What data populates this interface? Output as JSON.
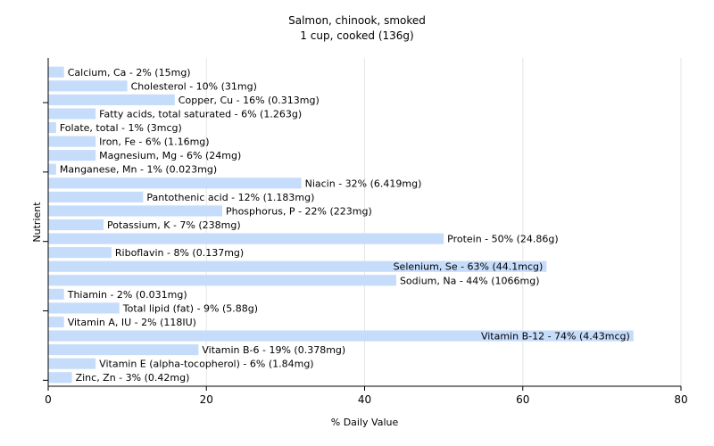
{
  "chart_data": {
    "type": "bar",
    "orientation": "horizontal",
    "title": "Salmon, chinook, smoked",
    "subtitle": "1 cup, cooked (136g)",
    "xlabel": "% Daily Value",
    "ylabel": "Nutrient",
    "xlim": [
      0,
      80
    ],
    "xticks": [
      "0",
      "20",
      "40",
      "60",
      "80"
    ],
    "grid": true,
    "bar_color": "#c6dcfb",
    "categories": [
      "Calcium, Ca",
      "Cholesterol",
      "Copper, Cu",
      "Fatty acids, total saturated",
      "Folate, total",
      "Iron, Fe",
      "Magnesium, Mg",
      "Manganese, Mn",
      "Niacin",
      "Pantothenic acid",
      "Phosphorus, P",
      "Potassium, K",
      "Protein",
      "Riboflavin",
      "Selenium, Se",
      "Sodium, Na",
      "Thiamin",
      "Total lipid (fat)",
      "Vitamin A, IU",
      "Vitamin B-12",
      "Vitamin B-6",
      "Vitamin E (alpha-tocopherol)",
      "Zinc, Zn"
    ],
    "values": [
      2,
      10,
      16,
      6,
      1,
      6,
      6,
      1,
      32,
      12,
      22,
      7,
      50,
      8,
      63,
      44,
      2,
      9,
      2,
      74,
      19,
      6,
      3
    ],
    "data_labels": [
      "Calcium, Ca - 2% (15mg)",
      "Cholesterol - 10% (31mg)",
      "Copper, Cu - 16% (0.313mg)",
      "Fatty acids, total saturated - 6% (1.263g)",
      "Folate, total - 1% (3mcg)",
      "Iron, Fe - 6% (1.16mg)",
      "Magnesium, Mg - 6% (24mg)",
      "Manganese, Mn - 1% (0.023mg)",
      "Niacin - 32% (6.419mg)",
      "Pantothenic acid - 12% (1.183mg)",
      "Phosphorus, P - 22% (223mg)",
      "Potassium, K - 7% (238mg)",
      "Protein - 50% (24.86g)",
      "Riboflavin - 8% (0.137mg)",
      "Selenium, Se - 63% (44.1mcg)",
      "Sodium, Na - 44% (1066mg)",
      "Thiamin - 2% (0.031mg)",
      "Total lipid (fat) - 9% (5.88g)",
      "Vitamin A, IU - 2% (118IU)",
      "Vitamin B-12 - 74% (4.43mcg)",
      "Vitamin B-6 - 19% (0.378mg)",
      "Vitamin E (alpha-tocopherol) - 6% (1.84mg)",
      "Zinc, Zn - 3% (0.42mg)"
    ]
  }
}
